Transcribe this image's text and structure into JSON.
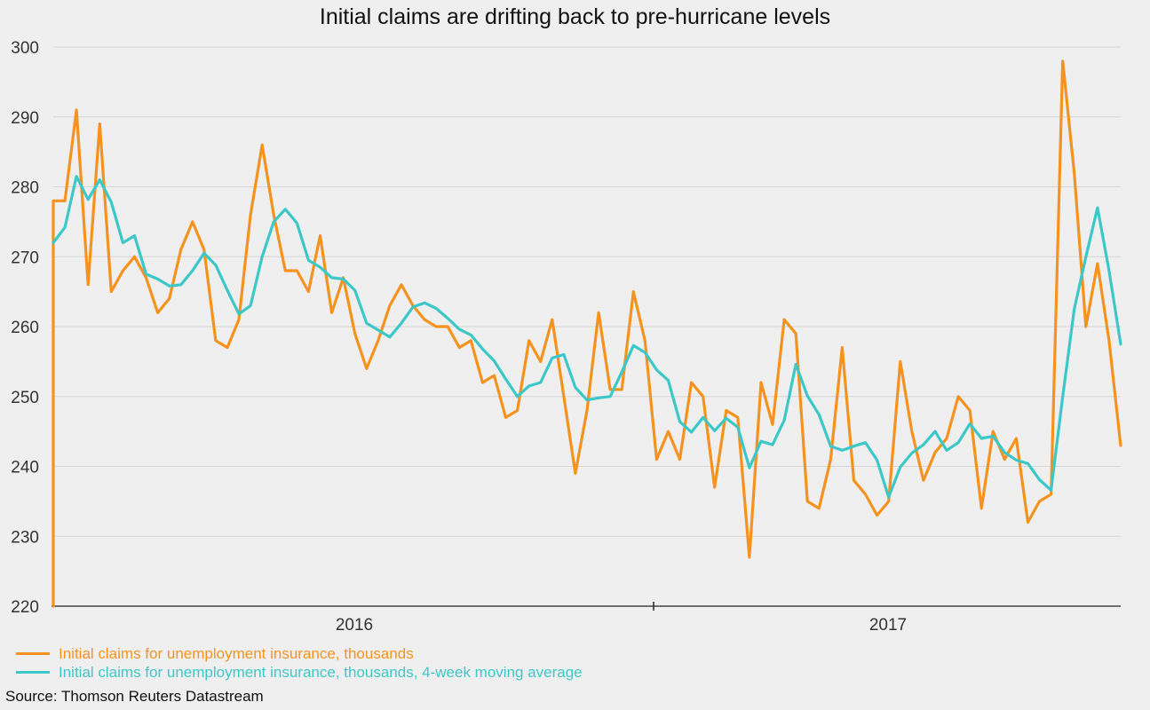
{
  "chart_data": {
    "type": "line",
    "title": "Initial claims are drifting back to pre-hurricane levels",
    "xlabel": "",
    "ylabel": "",
    "ylim": [
      220,
      300
    ],
    "yticks": [
      220,
      230,
      240,
      250,
      260,
      270,
      280,
      290,
      300
    ],
    "xtick_labels": [
      "2016",
      "2017"
    ],
    "grid": "horizontal",
    "legend_position": "bottom-left",
    "series": [
      {
        "name": "Initial claims for unemployment insurance, thousands",
        "color": "#f5931e",
        "values": [
          278,
          278,
          291,
          266,
          289,
          265,
          268,
          270,
          267,
          262,
          264,
          271,
          275,
          271,
          258,
          257,
          261,
          276,
          286,
          276,
          268,
          268,
          265,
          273,
          262,
          267,
          259,
          254,
          258,
          263,
          266,
          263,
          261,
          260,
          260,
          257,
          258,
          252,
          253,
          247,
          248,
          258,
          255,
          261,
          250,
          239,
          248,
          262,
          251,
          251,
          265,
          258,
          241,
          245,
          241,
          252,
          250,
          237,
          248,
          247,
          227,
          252,
          246,
          261,
          259,
          235,
          234,
          241,
          257,
          238,
          236,
          233,
          235,
          255,
          245,
          238,
          242,
          244,
          250,
          248,
          234,
          245,
          241,
          244,
          232,
          235,
          236,
          298,
          282,
          260,
          269,
          258,
          243
        ]
      },
      {
        "name": "Initial claims for unemployment insurance, thousands, 4-week moving average",
        "color": "#3cc8c8",
        "values": [
          272,
          274.2,
          281.5,
          278.2,
          281,
          277.8,
          272,
          273,
          267.5,
          266.8,
          265.8,
          266,
          268,
          270.5,
          268.8,
          265.2,
          261.8,
          263,
          270,
          275,
          276.8,
          274.8,
          269.5,
          268.5,
          267,
          266.8,
          265.2,
          260.5,
          259.5,
          258.5,
          260.5,
          262.8,
          263.4,
          262.6,
          261.2,
          259.6,
          258.8,
          256.8,
          255.1,
          252.5,
          250,
          251.5,
          252,
          255.5,
          256,
          251.3,
          249.5,
          249.8,
          250,
          253.5,
          257.3,
          256.3,
          253.8,
          252.3,
          246.4,
          244.9,
          247,
          245.1,
          246.9,
          245.6,
          239.8,
          243.6,
          243.1,
          246.6,
          254.6,
          250.1,
          247.4,
          242.9,
          242.3,
          242.9,
          243.4,
          240.9,
          235.6,
          239.9,
          241.9,
          243.1,
          245,
          242.3,
          243.4,
          246.1,
          244,
          244.3,
          242,
          240.9,
          240.4,
          238.1,
          236.6,
          250,
          262.5,
          270,
          277,
          268,
          257.5
        ]
      }
    ],
    "source": "Source: Thomson Reuters Datastream"
  }
}
